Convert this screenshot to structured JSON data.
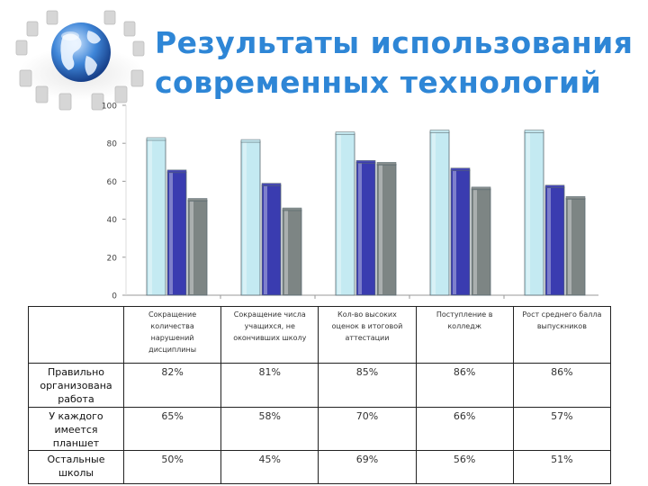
{
  "header": {
    "title_line1": "Результаты использования",
    "title_line2": "современных технологий"
  },
  "logo": {
    "icon": "globe-with-chairs-icon"
  },
  "chart_data": {
    "type": "bar",
    "categories": [
      "Сокращение количества нарушений дисциплины",
      "Сокращение числа учащихся, не окончивших школу",
      "Кол-во высоких оценок в итоговой аттестации",
      "Поступление в колледж",
      "Рост среднего балла выпускников"
    ],
    "series": [
      {
        "name": "Правильно организована работа",
        "values": [
          82,
          81,
          85,
          86,
          86
        ],
        "labels": [
          "82%",
          "81%",
          "85%",
          "86%",
          "86%"
        ],
        "color": "#c4eaf2"
      },
      {
        "name": "У каждого имеется планшет",
        "values": [
          65,
          58,
          70,
          66,
          57
        ],
        "labels": [
          "65%",
          "58%",
          "70%",
          "66%",
          "57%"
        ],
        "color": "#3a3cb0"
      },
      {
        "name": "Остальные школы",
        "values": [
          50,
          45,
          69,
          56,
          51
        ],
        "labels": [
          "50%",
          "45%",
          "69%",
          "56%",
          "51%"
        ],
        "color": "#7d8584"
      }
    ],
    "yticks": [
      "0",
      "20",
      "40",
      "60",
      "80",
      "100"
    ],
    "ylim": [
      0,
      100
    ],
    "grid": false,
    "legend": "table-below"
  }
}
